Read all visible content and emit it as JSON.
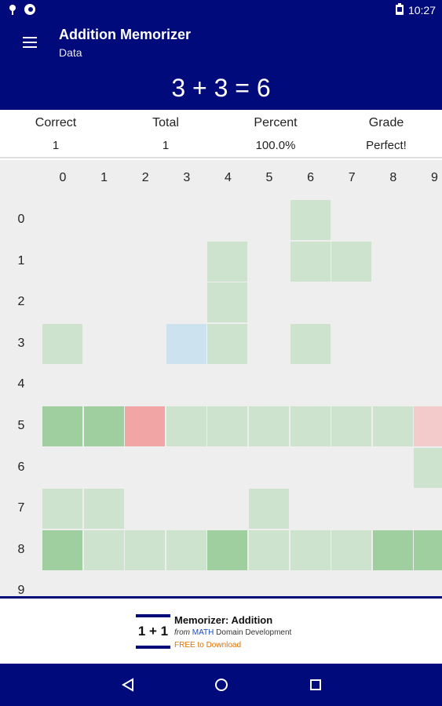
{
  "status_bar": {
    "time": "10:27",
    "icons": [
      "notification-pin-icon",
      "app-icon",
      "battery-icon"
    ]
  },
  "app_bar": {
    "title": "Addition Memorizer",
    "subtitle": "Data",
    "menu_icon": "hamburger-menu-icon"
  },
  "equation": "3 + 3 = 6",
  "stats": [
    {
      "label": "Correct",
      "value": "1"
    },
    {
      "label": "Total",
      "value": "1"
    },
    {
      "label": "Percent",
      "value": "100.0%"
    },
    {
      "label": "Grade",
      "value": "Perfect!"
    }
  ],
  "grid": {
    "col_headers": [
      "0",
      "1",
      "2",
      "3",
      "4",
      "5",
      "6",
      "7",
      "8",
      "9"
    ],
    "row_headers": [
      "0",
      "1",
      "2",
      "3",
      "4",
      "5",
      "6",
      "7",
      "8",
      "9"
    ],
    "colors": {
      "L": "#cde3cd",
      "M": "#9fcf9f",
      "R": "#f1a5a5",
      "P": "#f4cbcb",
      "B": "#cde2ef"
    },
    "cells": [
      [
        "",
        "",
        "",
        "",
        "",
        "",
        "L",
        "",
        "",
        ""
      ],
      [
        "",
        "",
        "",
        "",
        "L",
        "",
        "L",
        "L",
        "",
        ""
      ],
      [
        "",
        "",
        "",
        "",
        "L",
        "",
        "",
        "",
        "",
        ""
      ],
      [
        "L",
        "",
        "",
        "B",
        "L",
        "",
        "L",
        "",
        "",
        ""
      ],
      [
        "",
        "",
        "",
        "",
        "",
        "",
        "",
        "",
        "",
        ""
      ],
      [
        "M",
        "M",
        "R",
        "L",
        "L",
        "L",
        "L",
        "L",
        "L",
        "P"
      ],
      [
        "",
        "",
        "",
        "",
        "",
        "",
        "",
        "",
        "",
        "L"
      ],
      [
        "L",
        "L",
        "",
        "",
        "",
        "L",
        "",
        "",
        "",
        ""
      ],
      [
        "M",
        "L",
        "L",
        "L",
        "M",
        "L",
        "L",
        "L",
        "M",
        "M"
      ],
      [
        "",
        "",
        "",
        "",
        "",
        "",
        "",
        "",
        "",
        ""
      ]
    ]
  },
  "ad": {
    "logo_text": "1 + 1",
    "title": "Memorizer: Addition",
    "from_prefix": "from",
    "from_brand": "MATH",
    "from_suffix": "Domain Development",
    "cta": "FREE to Download"
  },
  "nav": {
    "icons": [
      "back-icon",
      "home-icon",
      "recents-icon"
    ]
  }
}
